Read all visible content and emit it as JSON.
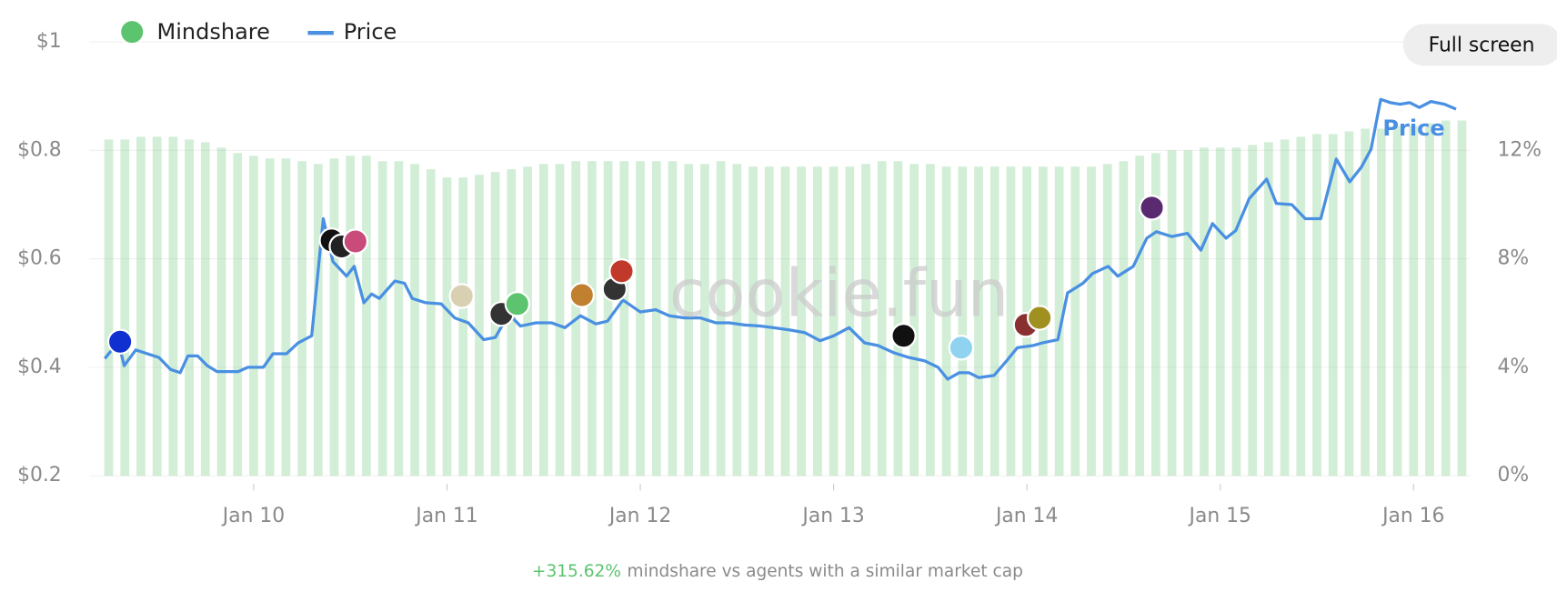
{
  "ui": {
    "button": "Full screen"
  },
  "chart_data": {
    "type": "bar-line",
    "watermark": "cookie.fun",
    "footer": {
      "change": "+315.62%",
      "text": "mindshare vs agents with a similar market cap"
    },
    "xlim": [
      9.15,
      16.29
    ],
    "xticks": [
      {
        "value": 10,
        "label": "Jan 10"
      },
      {
        "value": 11,
        "label": "Jan 11"
      },
      {
        "value": 12,
        "label": "Jan 12"
      },
      {
        "value": 13,
        "label": "Jan 13"
      },
      {
        "value": 14,
        "label": "Jan 14"
      },
      {
        "value": 15,
        "label": "Jan 15"
      },
      {
        "value": 16,
        "label": "Jan 16"
      }
    ],
    "ylim": [
      0.2,
      1
    ],
    "yticks": [
      {
        "value": 0.2,
        "label": "$0.2"
      },
      {
        "value": 0.4,
        "label": "$0.4"
      },
      {
        "value": 0.6,
        "label": "$0.6"
      },
      {
        "value": 0.8,
        "label": "$0.8"
      },
      {
        "value": 1,
        "label": "$1"
      }
    ],
    "y2lim": [
      0,
      16
    ],
    "y2ticks": [
      {
        "value": 0,
        "label": "0%"
      },
      {
        "value": 4,
        "label": "4%"
      },
      {
        "value": 8,
        "label": "8%"
      },
      {
        "value": 12,
        "label": "12%"
      }
    ],
    "grid": true,
    "series": [
      {
        "name": "Mindshare",
        "type": "bar",
        "axis": "y2",
        "color": "#5cc36f",
        "x": [
          9.25,
          9.3333,
          9.4167,
          9.5,
          9.5833,
          9.6667,
          9.75,
          9.8333,
          9.9167,
          10,
          10.0833,
          10.1667,
          10.25,
          10.3333,
          10.4167,
          10.5,
          10.5833,
          10.6667,
          10.75,
          10.8333,
          10.9167,
          11,
          11.0833,
          11.1667,
          11.25,
          11.3333,
          11.4167,
          11.5,
          11.5833,
          11.6667,
          11.75,
          11.8333,
          11.9167,
          12,
          12.0833,
          12.1667,
          12.25,
          12.3333,
          12.4167,
          12.5,
          12.5833,
          12.6667,
          12.75,
          12.8333,
          12.9167,
          13,
          13.0833,
          13.1667,
          13.25,
          13.3333,
          13.4167,
          13.5,
          13.5833,
          13.6667,
          13.75,
          13.8333,
          13.9167,
          14,
          14.0833,
          14.1667,
          14.25,
          14.3333,
          14.4167,
          14.5,
          14.5833,
          14.6667,
          14.75,
          14.8333,
          14.9167,
          15,
          15.0833,
          15.1667,
          15.25,
          15.3333,
          15.4167,
          15.5,
          15.5833,
          15.6667,
          15.75,
          15.8333,
          15.9167,
          16,
          16.0833,
          16.1667,
          16.25
        ],
        "values": [
          12.4,
          12.4,
          12.5,
          12.5,
          12.5,
          12.4,
          12.3,
          12.1,
          11.9,
          11.8,
          11.7,
          11.7,
          11.6,
          11.5,
          11.7,
          11.8,
          11.8,
          11.6,
          11.6,
          11.5,
          11.3,
          11.0,
          11.0,
          11.1,
          11.2,
          11.3,
          11.4,
          11.5,
          11.5,
          11.6,
          11.6,
          11.6,
          11.6,
          11.6,
          11.6,
          11.6,
          11.5,
          11.5,
          11.6,
          11.5,
          11.4,
          11.4,
          11.4,
          11.4,
          11.4,
          11.4,
          11.4,
          11.5,
          11.6,
          11.6,
          11.5,
          11.5,
          11.4,
          11.4,
          11.4,
          11.4,
          11.4,
          11.4,
          11.4,
          11.4,
          11.4,
          11.4,
          11.5,
          11.6,
          11.8,
          11.9,
          12.0,
          12.0,
          12.1,
          12.1,
          12.1,
          12.2,
          12.3,
          12.4,
          12.5,
          12.6,
          12.6,
          12.7,
          12.8,
          12.8,
          12.9,
          12.9,
          13.0,
          13.1,
          13.1
        ]
      },
      {
        "name": "Price",
        "type": "line",
        "axis": "y",
        "color": "#4a90e2",
        "x": [
          9.23,
          9.3,
          9.33,
          9.39,
          9.51,
          9.57,
          9.62,
          9.66,
          9.71,
          9.76,
          9.81,
          9.92,
          9.97,
          10.05,
          10.1,
          10.17,
          10.23,
          10.3,
          10.36,
          10.41,
          10.48,
          10.52,
          10.57,
          10.61,
          10.65,
          10.73,
          10.78,
          10.82,
          10.89,
          10.97,
          11.04,
          11.11,
          11.19,
          11.25,
          11.32,
          11.38,
          11.46,
          11.54,
          11.61,
          11.69,
          11.77,
          11.83,
          11.91,
          12.0,
          12.08,
          12.15,
          12.23,
          12.31,
          12.39,
          12.46,
          12.54,
          12.62,
          12.69,
          12.77,
          12.85,
          12.93,
          13.0,
          13.08,
          13.16,
          13.23,
          13.31,
          13.39,
          13.47,
          13.54,
          13.59,
          13.65,
          13.7,
          13.75,
          13.83,
          13.9,
          13.95,
          14.03,
          14.08,
          14.16,
          14.21,
          14.29,
          14.34,
          14.42,
          14.47,
          14.55,
          14.62,
          14.67,
          14.75,
          14.83,
          14.9,
          14.96,
          15.03,
          15.08,
          15.15,
          15.24,
          15.29,
          15.37,
          15.44,
          15.52,
          15.6,
          15.67,
          15.73,
          15.78,
          15.83,
          15.88,
          15.93,
          15.98,
          16.03,
          16.09,
          16.16,
          16.22
        ],
        "values": [
          0.416,
          0.447,
          0.403,
          0.432,
          0.418,
          0.396,
          0.39,
          0.421,
          0.421,
          0.403,
          0.392,
          0.392,
          0.4,
          0.4,
          0.425,
          0.425,
          0.445,
          0.458,
          0.674,
          0.595,
          0.568,
          0.586,
          0.519,
          0.535,
          0.527,
          0.559,
          0.555,
          0.527,
          0.519,
          0.517,
          0.491,
          0.482,
          0.451,
          0.455,
          0.498,
          0.476,
          0.482,
          0.482,
          0.473,
          0.495,
          0.48,
          0.485,
          0.524,
          0.502,
          0.506,
          0.495,
          0.491,
          0.491,
          0.482,
          0.482,
          0.478,
          0.476,
          0.473,
          0.469,
          0.464,
          0.449,
          0.458,
          0.473,
          0.445,
          0.44,
          0.427,
          0.418,
          0.412,
          0.4,
          0.378,
          0.39,
          0.39,
          0.381,
          0.385,
          0.414,
          0.436,
          0.44,
          0.445,
          0.451,
          0.537,
          0.555,
          0.573,
          0.586,
          0.568,
          0.586,
          0.638,
          0.65,
          0.641,
          0.647,
          0.616,
          0.665,
          0.638,
          0.652,
          0.711,
          0.747,
          0.702,
          0.7,
          0.674,
          0.674,
          0.784,
          0.742,
          0.769,
          0.802,
          0.894,
          0.888,
          0.885,
          0.888,
          0.879,
          0.89,
          0.885,
          0.876
        ]
      }
    ]
  }
}
